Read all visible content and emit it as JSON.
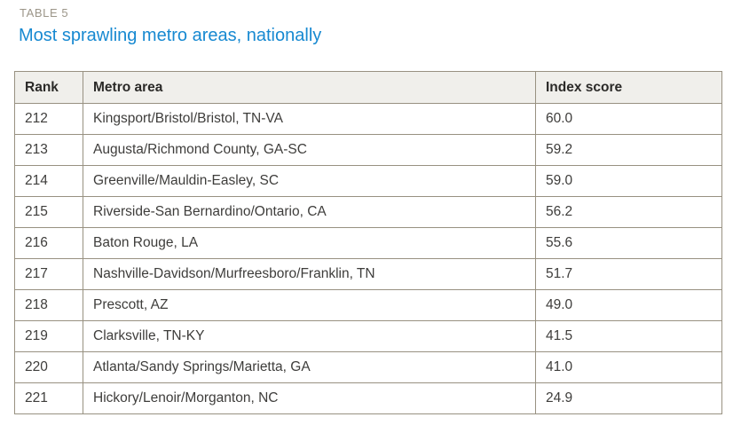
{
  "page": {
    "table_label": "TABLE 5",
    "title": "Most sprawling metro areas, nationally"
  },
  "colors": {
    "title_blue": "#1789d1",
    "label_gray": "#9c9689",
    "table_border": "#989181",
    "header_background": "#f0efeb",
    "header_text": "#2b2a28",
    "cell_text": "#3e3d3b"
  },
  "table": {
    "columns": [
      "Rank",
      "Metro area",
      "Index score"
    ],
    "rows": [
      {
        "rank": "212",
        "metro_area": "Kingsport/Bristol/Bristol, TN-VA",
        "index_score": "60.0"
      },
      {
        "rank": "213",
        "metro_area": "Augusta/Richmond County, GA-SC",
        "index_score": "59.2"
      },
      {
        "rank": "214",
        "metro_area": "Greenville/Mauldin-Easley, SC",
        "index_score": "59.0"
      },
      {
        "rank": "215",
        "metro_area": "Riverside-San Bernardino/Ontario, CA",
        "index_score": "56.2"
      },
      {
        "rank": "216",
        "metro_area": "Baton Rouge, LA",
        "index_score": "55.6"
      },
      {
        "rank": "217",
        "metro_area": "Nashville-Davidson/Murfreesboro/Franklin, TN",
        "index_score": "51.7"
      },
      {
        "rank": "218",
        "metro_area": "Prescott, AZ",
        "index_score": "49.0"
      },
      {
        "rank": "219",
        "metro_area": "Clarksville, TN-KY",
        "index_score": "41.5"
      },
      {
        "rank": "220",
        "metro_area": "Atlanta/Sandy Springs/Marietta, GA",
        "index_score": "41.0"
      },
      {
        "rank": "221",
        "metro_area": "Hickory/Lenoir/Morganton, NC",
        "index_score": "24.9"
      }
    ]
  }
}
